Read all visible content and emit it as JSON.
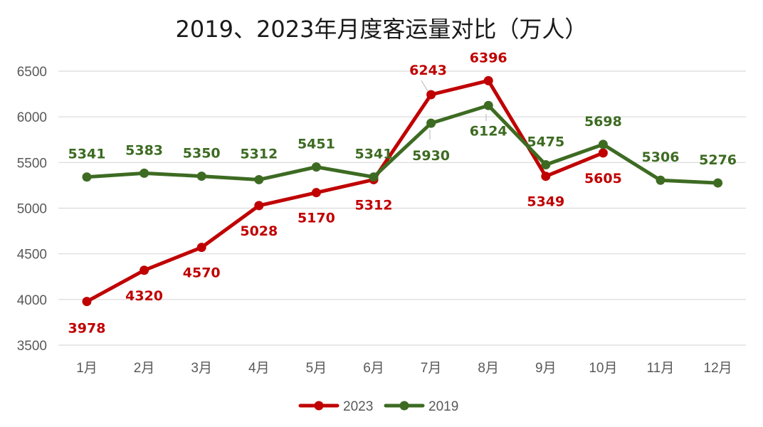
{
  "chart_data": {
    "type": "line",
    "title": "2019、2023年月度客运量对比（万人）",
    "categories": [
      "1月",
      "2月",
      "3月",
      "4月",
      "5月",
      "6月",
      "7月",
      "8月",
      "9月",
      "10月",
      "11月",
      "12月"
    ],
    "ylim": [
      3500,
      6500
    ],
    "yticks": [
      3500,
      4000,
      4500,
      5000,
      5500,
      6000,
      6500
    ],
    "grid": true,
    "legend_position": "bottom",
    "series": [
      {
        "name": "2023",
        "color": "#c00000",
        "values": [
          3978,
          4320,
          4570,
          5028,
          5170,
          5312,
          6243,
          6396,
          5349,
          5605,
          null,
          null
        ]
      },
      {
        "name": "2019",
        "color": "#3d6b22",
        "values": [
          5341,
          5383,
          5350,
          5312,
          5451,
          5341,
          5930,
          6124,
          5475,
          5698,
          5306,
          5276
        ]
      }
    ]
  }
}
